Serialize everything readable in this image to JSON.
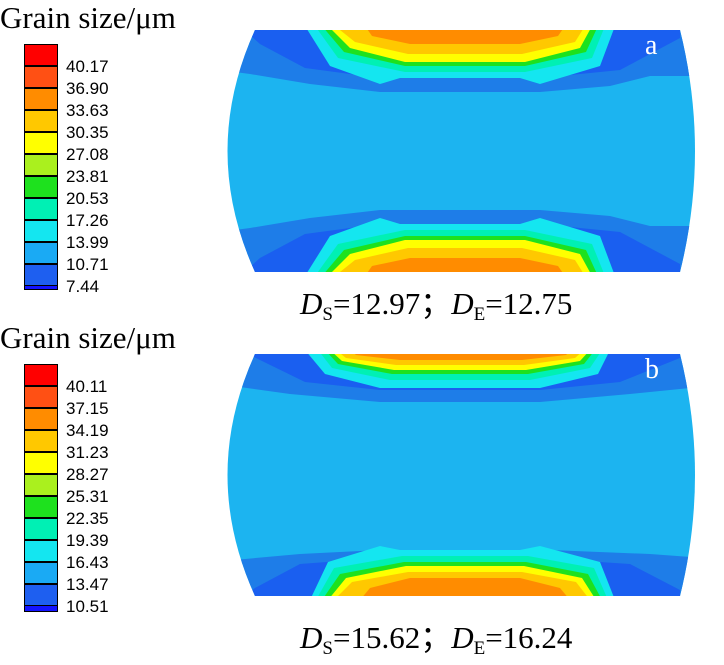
{
  "colors": {
    "blue_dark": "#1414ff",
    "blue_mid": "#1a5ff0",
    "blue_deep": "#1e7de8",
    "blue_light": "#1aaaf4",
    "cyan_body": "#1cb4f0",
    "cyan": "#14e6f0",
    "aqua": "#00f0b4",
    "green": "#1ee11e",
    "lime": "#aaf01e",
    "yellow": "#ffff00",
    "gold": "#ffc800",
    "orange": "#ff8c00",
    "red_orange": "#ff5014",
    "red": "#ff0000"
  },
  "panels": [
    {
      "letter": "a",
      "title": "Grain size/μm",
      "legend_labels": [
        "40.17",
        "36.90",
        "33.63",
        "30.35",
        "27.08",
        "23.81",
        "20.53",
        "17.26",
        "13.99",
        "10.71",
        "7.44"
      ],
      "caption": {
        "ds_symbol": "D",
        "ds_sub": "S",
        "ds_value": "=12.97",
        "sep": "；",
        "de_symbol": "D",
        "de_sub": "E",
        "de_value": "=12.75"
      }
    },
    {
      "letter": "b",
      "title": "Grain size/μm",
      "legend_labels": [
        "40.11",
        "37.15",
        "34.19",
        "31.23",
        "28.27",
        "25.31",
        "22.35",
        "19.39",
        "16.43",
        "13.47",
        "10.51"
      ],
      "caption": {
        "ds_symbol": "D",
        "ds_sub": "S",
        "ds_value": "=15.62",
        "sep": "；",
        "de_symbol": "D",
        "de_sub": "E",
        "de_value": "=16.24"
      }
    }
  ]
}
